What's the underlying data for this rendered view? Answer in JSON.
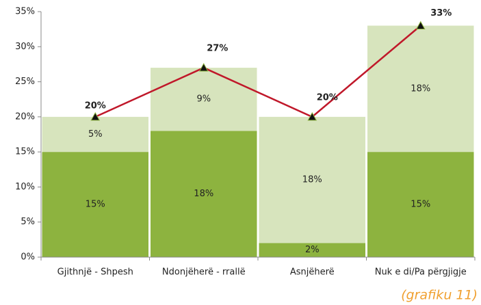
{
  "chart_data": {
    "type": "bar",
    "stacked": true,
    "categories": [
      "Gjithnjë - Shpesh",
      "Ndonjëherë - rrallë",
      "Asnjëherë",
      "Nuk e di/Pa përgjigje"
    ],
    "series": [
      {
        "type": "bar",
        "color": "#8db33f",
        "values": [
          15,
          18,
          2,
          15
        ],
        "value_labels": [
          "15%",
          "18%",
          "2%",
          "15%"
        ]
      },
      {
        "type": "bar",
        "color": "#d7e4bd",
        "values": [
          5,
          9,
          18,
          18
        ],
        "value_labels": [
          "5%",
          "9%",
          "18%",
          "18%"
        ]
      },
      {
        "type": "line",
        "color": "#c0182a",
        "marker_color": "#111111",
        "values": [
          20,
          27,
          20,
          33
        ],
        "value_labels": [
          "20%",
          "27%",
          "20%",
          "33%"
        ]
      }
    ],
    "ylim": [
      0,
      35
    ],
    "yticks": [
      {
        "value": 0,
        "label": "0%"
      },
      {
        "value": 5,
        "label": "5%"
      },
      {
        "value": 10,
        "label": "10%"
      },
      {
        "value": 15,
        "label": "15%"
      },
      {
        "value": 20,
        "label": "20%"
      },
      {
        "value": 25,
        "label": "25%"
      },
      {
        "value": 30,
        "label": "30%"
      },
      {
        "value": 35,
        "label": "35%"
      }
    ],
    "grid": false,
    "caption": "(grafiku 11)"
  }
}
